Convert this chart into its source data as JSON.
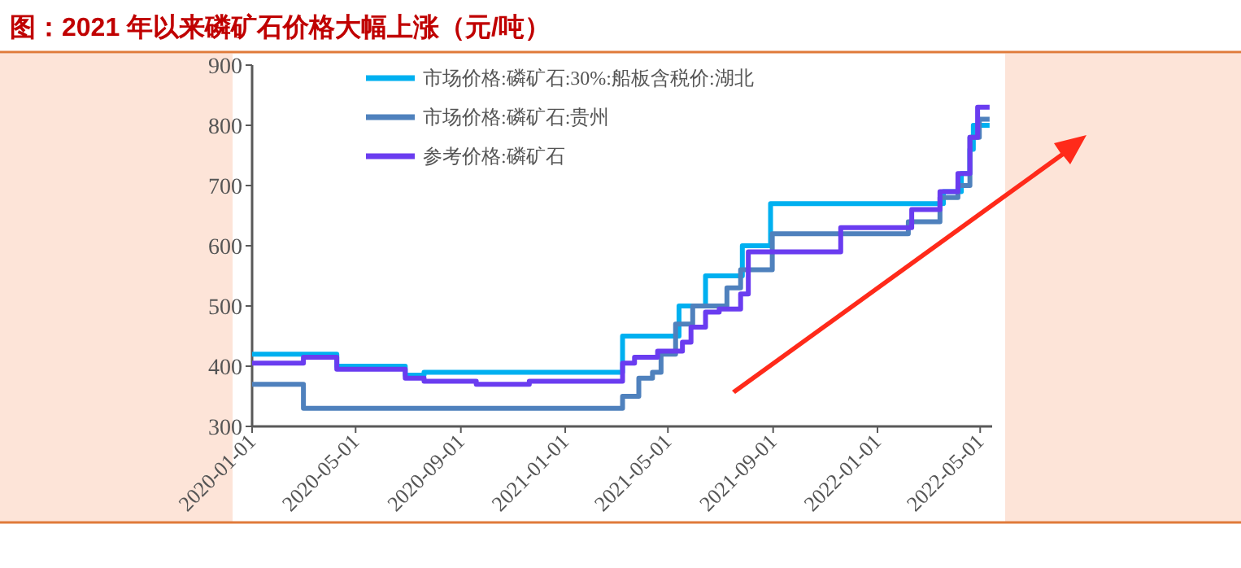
{
  "chart_data": {
    "type": "step",
    "title": "图：2021 年以来磷矿石价格大幅上涨（元/吨）",
    "xlim": [
      "2020-01-01",
      "2022-05-15"
    ],
    "xticks": [
      "2020-01-01",
      "2020-05-01",
      "2020-09-01",
      "2021-01-01",
      "2021-05-01",
      "2021-09-01",
      "2022-01-01",
      "2022-05-01"
    ],
    "ylim": [
      300,
      900
    ],
    "yticks": [
      300,
      400,
      500,
      600,
      700,
      800,
      900
    ],
    "legend": "top left",
    "grid": false,
    "series": [
      {
        "name": "市场价格:磷矿石:30%:船板含税价:湖北",
        "color": "#00b0f0",
        "x": [
          "2020-01-01",
          "2020-04-09",
          "2020-06-28",
          "2020-07-20",
          "2021-03-09",
          "2021-05-14",
          "2021-06-14",
          "2021-07-27",
          "2021-08-29",
          "2022-03-19",
          "2022-04-09",
          "2022-04-19",
          "2022-04-23",
          "2022-05-12"
        ],
        "values": [
          420,
          400,
          385,
          390,
          450,
          500,
          550,
          600,
          670,
          690,
          720,
          760,
          800,
          800
        ]
      },
      {
        "name": "市场价格:磷矿石:贵州",
        "color": "#4f81bd",
        "x": [
          "2020-01-01",
          "2020-03-01",
          "2021-03-09",
          "2021-03-28",
          "2021-04-13",
          "2021-04-23",
          "2021-05-10",
          "2021-05-30",
          "2021-07-09",
          "2021-07-25",
          "2021-08-31",
          "2022-02-06",
          "2022-03-15",
          "2022-04-05",
          "2022-04-19",
          "2022-04-30",
          "2022-05-12"
        ],
        "values": [
          370,
          330,
          350,
          380,
          390,
          420,
          470,
          500,
          530,
          560,
          620,
          640,
          680,
          700,
          780,
          810,
          810
        ]
      },
      {
        "name": "参考价格:磷矿石",
        "color": "#6a3cf0",
        "x": [
          "2020-01-01",
          "2020-03-01",
          "2020-04-09",
          "2020-06-28",
          "2020-07-20",
          "2020-09-19",
          "2020-11-20",
          "2021-03-09",
          "2021-03-23",
          "2021-04-19",
          "2021-05-18",
          "2021-05-28",
          "2021-06-14",
          "2021-06-30",
          "2021-07-25",
          "2021-08-03",
          "2021-11-19",
          "2022-02-10",
          "2022-03-15",
          "2022-04-05",
          "2022-04-19",
          "2022-04-28",
          "2022-05-12"
        ],
        "values": [
          405,
          415,
          395,
          380,
          375,
          370,
          375,
          405,
          415,
          425,
          440,
          465,
          490,
          495,
          520,
          590,
          630,
          660,
          690,
          720,
          780,
          830,
          830
        ]
      }
    ]
  }
}
